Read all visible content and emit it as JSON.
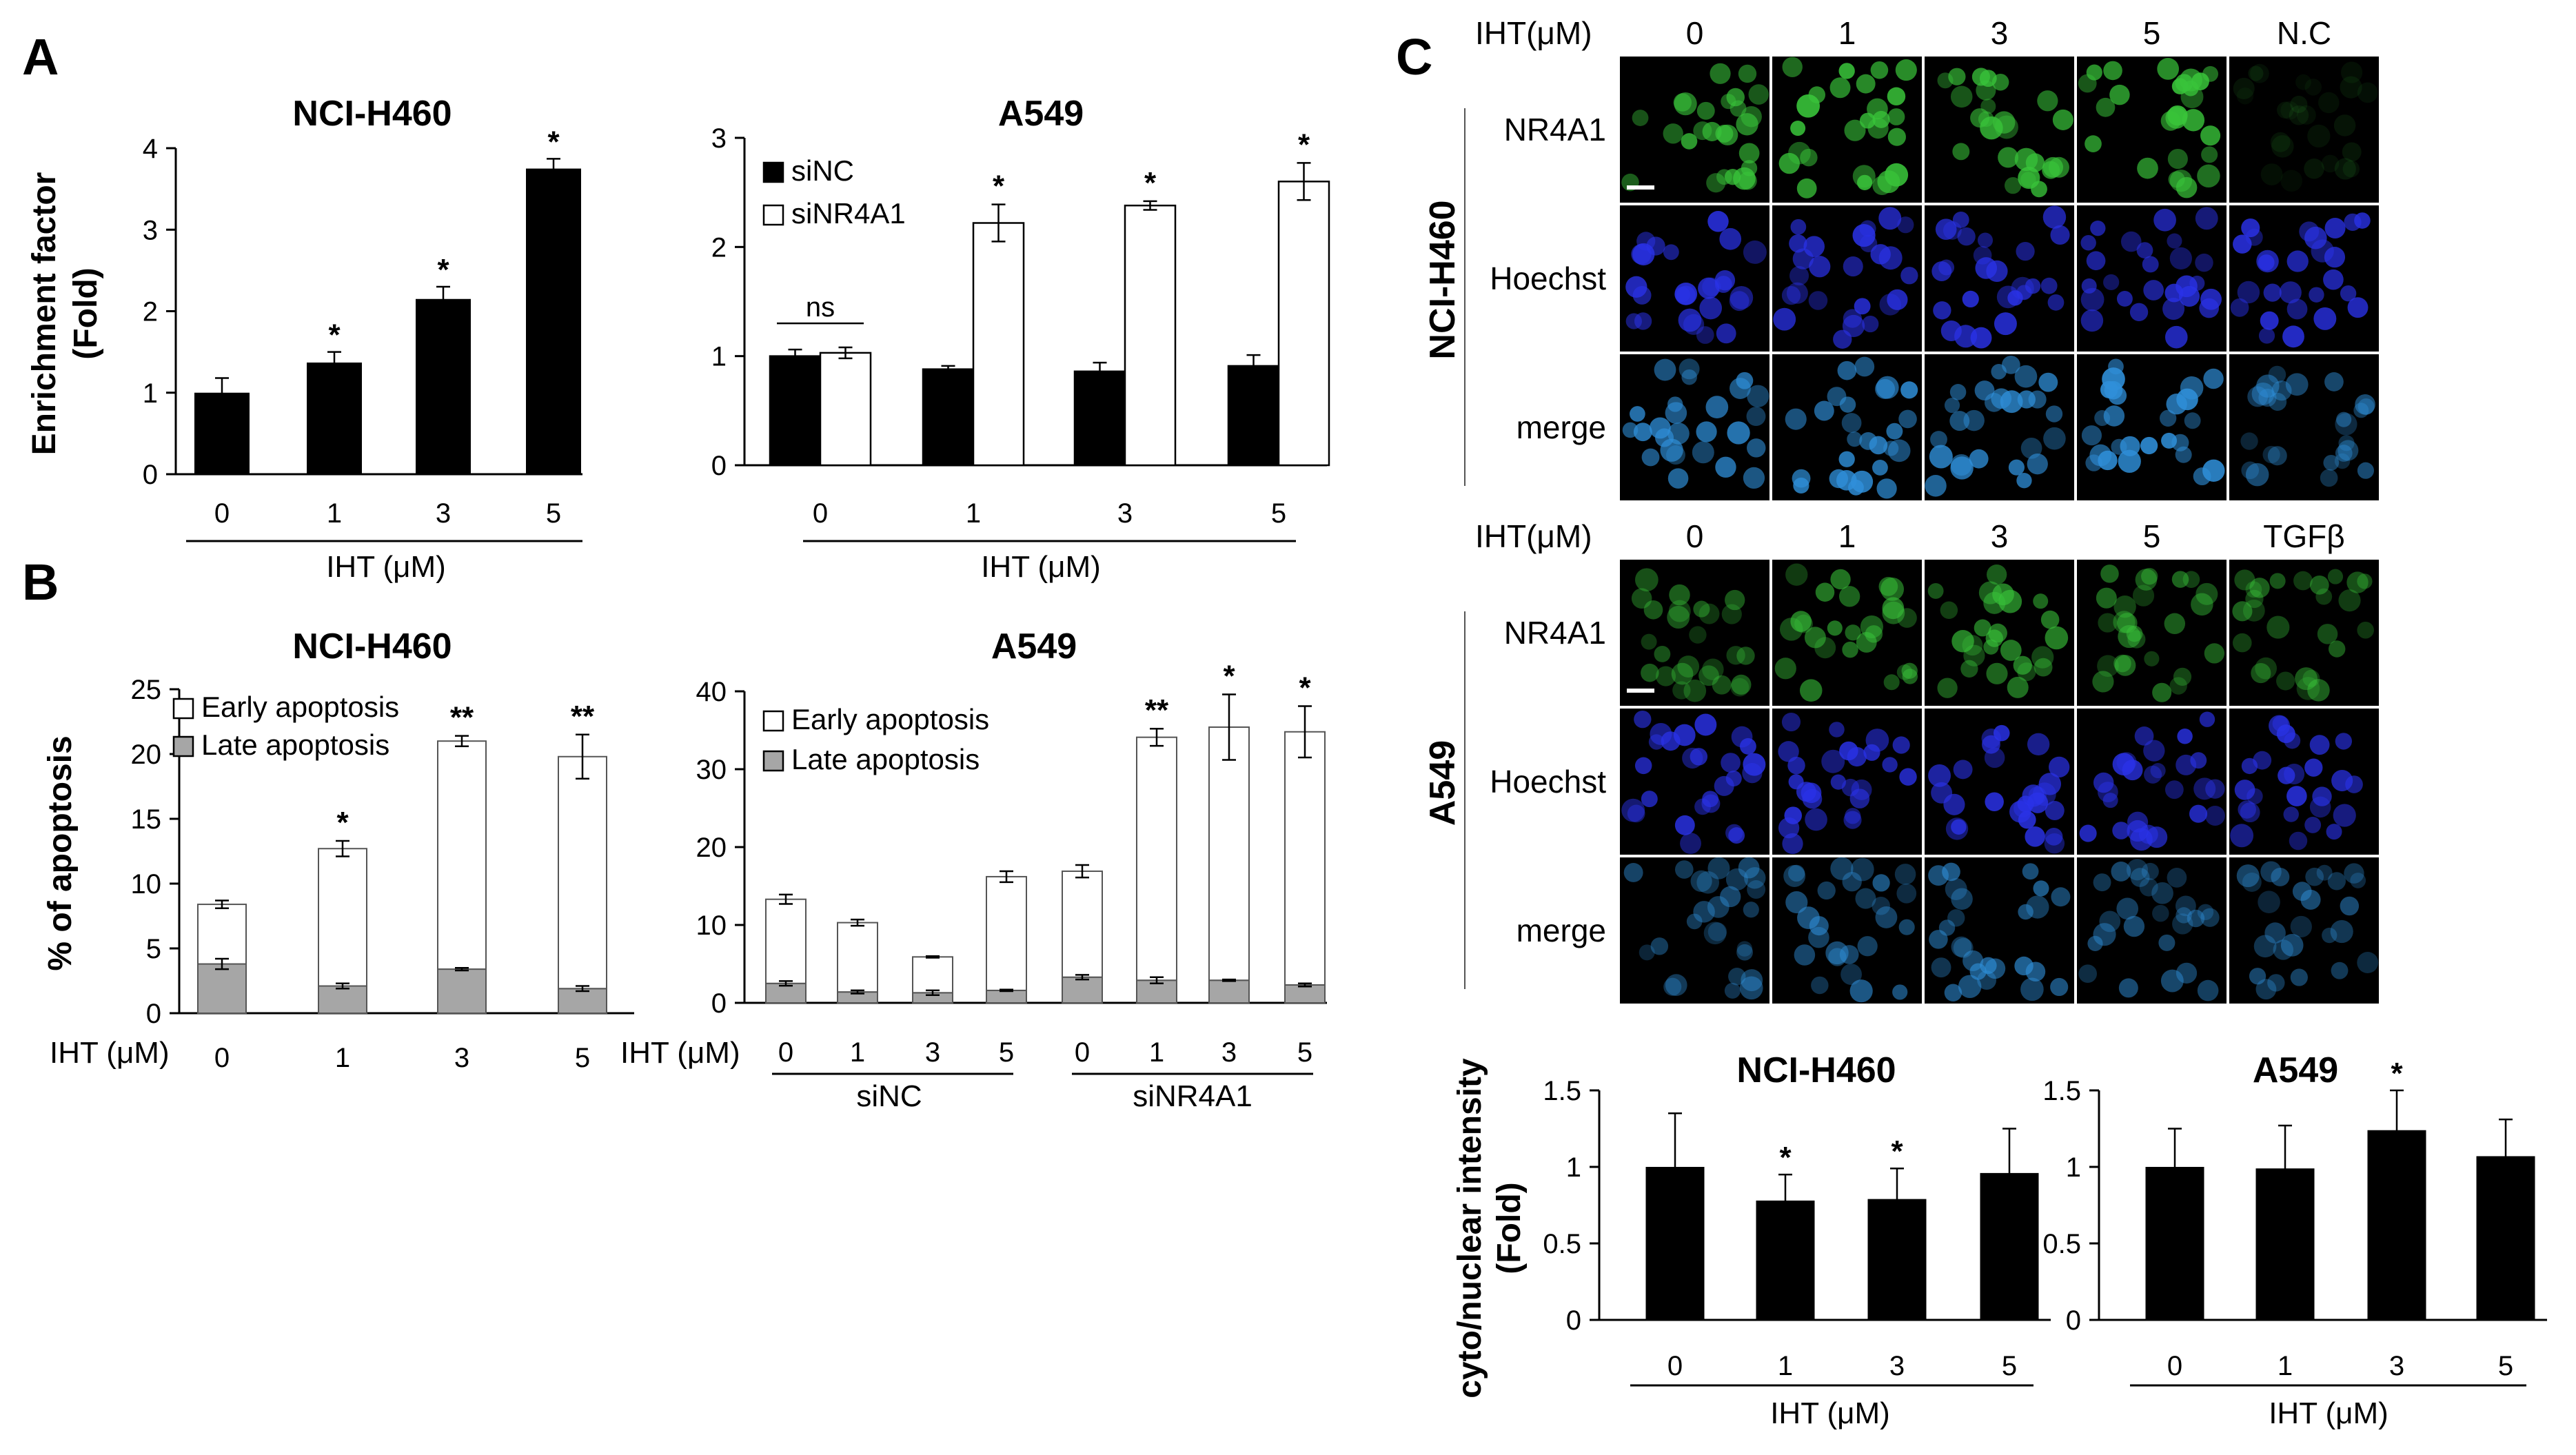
{
  "panels": {
    "a": "A",
    "b": "B",
    "c": "C"
  },
  "common": {
    "xlabel": "IHT (μM)",
    "doses": [
      "0",
      "1",
      "3",
      "5"
    ],
    "row_label": "IHT (μM)"
  },
  "chart_data": [
    {
      "id": "A1",
      "type": "bar",
      "title": "NCI-H460",
      "ylabel_lines": [
        "Enrichment factor",
        "(Fold)"
      ],
      "xlabel": "IHT (μM)",
      "categories": [
        "0",
        "1",
        "3",
        "5"
      ],
      "values": [
        1.0,
        1.37,
        2.15,
        3.75
      ],
      "errors": [
        0.18,
        0.13,
        0.15,
        0.12
      ],
      "annotations": [
        "",
        "*",
        "*",
        "*"
      ],
      "ylim": [
        0,
        4
      ],
      "yticks": [
        "0",
        "1",
        "2",
        "3",
        "4"
      ],
      "grid": false
    },
    {
      "id": "A2",
      "type": "bar",
      "title": "A549",
      "xlabel": "IHT (μM)",
      "categories": [
        "0",
        "1",
        "3",
        "5"
      ],
      "series": [
        {
          "name": "siNC",
          "color": "#000000",
          "values": [
            1.0,
            0.88,
            0.86,
            0.91
          ],
          "errors": [
            0.06,
            0.03,
            0.08,
            0.1
          ]
        },
        {
          "name": "siNR4A1",
          "color": "#ffffff",
          "values": [
            1.03,
            2.22,
            2.38,
            2.6
          ],
          "errors": [
            0.05,
            0.17,
            0.04,
            0.17
          ]
        }
      ],
      "annotations": [
        "ns",
        "*",
        "*",
        "*"
      ],
      "ylim": [
        0,
        3
      ],
      "yticks": [
        "0",
        "1",
        "2",
        "3"
      ],
      "legend": "top-left",
      "grid": false
    },
    {
      "id": "B1",
      "type": "bar",
      "stacked": true,
      "title": "NCI-H460",
      "ylabel": "% of apoptosis",
      "row_label": "IHT (μM)",
      "categories": [
        "0",
        "1",
        "3",
        "5"
      ],
      "series": [
        {
          "name": "Late apoptosis",
          "color": "#a6a6a6",
          "values": [
            3.8,
            2.1,
            3.4,
            1.9
          ],
          "errors": [
            0.4,
            0.2,
            0.1,
            0.2
          ]
        },
        {
          "name": "Early apoptosis",
          "color": "#ffffff",
          "values": [
            4.6,
            10.6,
            17.6,
            17.9
          ],
          "errors": [
            0.3,
            0.6,
            0.4,
            1.7
          ]
        }
      ],
      "annotations": [
        "",
        "*",
        "**",
        "**"
      ],
      "ylim": [
        0,
        25
      ],
      "yticks": [
        "0",
        "5",
        "10",
        "15",
        "20",
        "25"
      ],
      "legend": "top-left",
      "grid": false
    },
    {
      "id": "B2",
      "type": "bar",
      "stacked": true,
      "title": "A549",
      "row_label": "IHT (μM)",
      "categories": [
        "0",
        "1",
        "3",
        "5",
        "0",
        "1",
        "3",
        "5"
      ],
      "groups": [
        "siNC",
        "siNR4A1"
      ],
      "series": [
        {
          "name": "Late apoptosis",
          "color": "#a6a6a6",
          "values": [
            2.5,
            1.4,
            1.3,
            1.6,
            3.3,
            2.9,
            2.9,
            2.3
          ],
          "errors": [
            0.3,
            0.2,
            0.3,
            0.1,
            0.3,
            0.4,
            0.1,
            0.2
          ]
        },
        {
          "name": "Early apoptosis",
          "color": "#ffffff",
          "values": [
            10.8,
            8.9,
            4.6,
            14.6,
            13.6,
            31.2,
            32.5,
            32.5
          ],
          "errors": [
            0.6,
            0.4,
            0.1,
            0.7,
            0.8,
            1.1,
            4.2,
            3.3
          ]
        }
      ],
      "annotations": [
        "",
        "",
        "",
        "",
        "",
        "**",
        "*",
        "*"
      ],
      "ylim": [
        0,
        40
      ],
      "yticks": [
        "0",
        "10",
        "20",
        "30",
        "40"
      ],
      "legend": "top-left",
      "grid": false
    },
    {
      "id": "C1",
      "type": "bar",
      "title": "NCI-H460",
      "ylabel_lines": [
        "cyto/nuclear intensity",
        "(Fold)"
      ],
      "xlabel": "IHT (μM)",
      "categories": [
        "0",
        "1",
        "3",
        "5"
      ],
      "values": [
        1.0,
        0.78,
        0.79,
        0.96
      ],
      "errors": [
        0.35,
        0.17,
        0.2,
        0.29
      ],
      "annotations": [
        "",
        "*",
        "*",
        ""
      ],
      "ylim": [
        0,
        1.5
      ],
      "yticks": [
        "0",
        "0.5",
        "1",
        "1.5"
      ],
      "grid": false
    },
    {
      "id": "C2",
      "type": "bar",
      "title": "A549",
      "xlabel": "IHT (μM)",
      "categories": [
        "0",
        "1",
        "3",
        "5"
      ],
      "values": [
        1.0,
        0.99,
        1.24,
        1.07
      ],
      "errors": [
        0.25,
        0.28,
        0.26,
        0.24
      ],
      "annotations": [
        "",
        "",
        "*",
        ""
      ],
      "ylim": [
        0,
        1.5
      ],
      "yticks": [
        "0",
        "0.5",
        "1",
        "1.5"
      ],
      "grid": false
    }
  ],
  "microscopy": {
    "top": {
      "cell_line": "NCI-H460",
      "header_label": "IHT(μM)",
      "columns": [
        "0",
        "1",
        "3",
        "5",
        "N.C"
      ],
      "rows": [
        "NR4A1",
        "Hoechst",
        "merge"
      ],
      "stain_colors": {
        "NR4A1": "#39c43a",
        "Hoechst": "#2a32e8",
        "merge": "#2f8fd9"
      },
      "nr4a1_intensity": [
        0.85,
        0.95,
        0.85,
        0.95,
        0.12
      ]
    },
    "bottom": {
      "cell_line": "A549",
      "header_label": "IHT(μM)",
      "columns": [
        "0",
        "1",
        "3",
        "5",
        "TGFβ"
      ],
      "rows": [
        "NR4A1",
        "Hoechst",
        "merge"
      ],
      "stain_colors": {
        "NR4A1": "#39c43a",
        "Hoechst": "#2a32e8",
        "merge": "#2f8fd9"
      },
      "nr4a1_intensity": [
        0.5,
        0.65,
        0.7,
        0.55,
        0.55
      ]
    }
  }
}
